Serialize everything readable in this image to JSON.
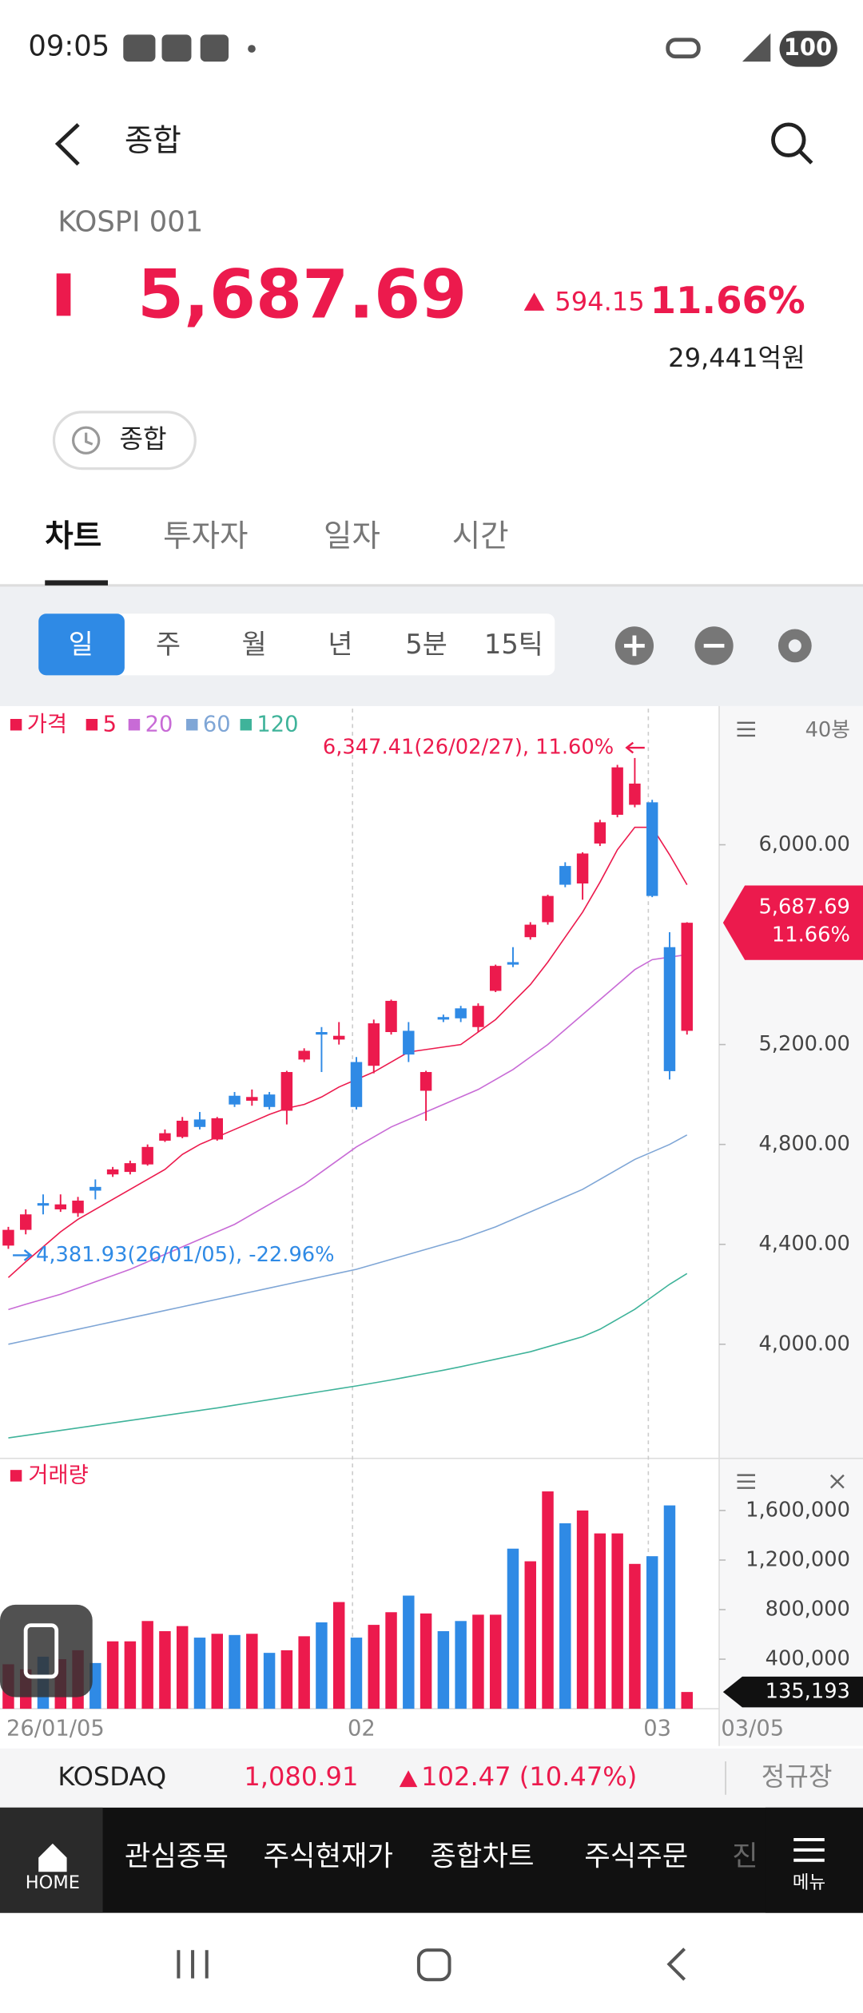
{
  "status_bar": {
    "time": "09:05",
    "battery": "100"
  },
  "header": {
    "title": "종합"
  },
  "quote": {
    "code": "KOSPI 001",
    "price": "5,687.69",
    "change": "594.15",
    "change_pct": "11.66%",
    "turnover": "29,441억원",
    "market_chip": "종합"
  },
  "tabs": [
    "차트",
    "투자자",
    "일자",
    "시간"
  ],
  "periods": [
    "일",
    "주",
    "월",
    "년",
    "5분",
    "15틱"
  ],
  "chart": {
    "type": "candlestick",
    "price_legend": "가격",
    "bars": "40봉",
    "up_color": "#ec1a4d",
    "down_color": "#2f8ae5",
    "categories": [
      "26/01/05",
      null,
      null,
      null,
      null,
      null,
      null,
      null,
      null,
      null,
      null,
      null,
      null,
      null,
      null,
      null,
      null,
      null,
      null,
      null,
      "02",
      null,
      null,
      null,
      null,
      null,
      null,
      null,
      null,
      null,
      null,
      null,
      null,
      null,
      null,
      null,
      null,
      "03",
      null,
      null
    ],
    "last_date": "03/05",
    "ylim": [
      3548,
      6545
    ],
    "yticks": [
      {
        "value": 4000,
        "label": "4,000.00"
      },
      {
        "value": 4400,
        "label": "4,400.00"
      },
      {
        "value": 4800,
        "label": "4,800.00"
      },
      {
        "value": 5200,
        "label": "5,200.00"
      },
      {
        "value": 6000,
        "label": "6,000.00"
      }
    ],
    "open": [
      4395,
      4458,
      4565,
      4540,
      4525,
      4630,
      4680,
      4690,
      4720,
      4815,
      4830,
      4900,
      4820,
      4995,
      4975,
      5000,
      4935,
      5140,
      5250,
      5220,
      5130,
      5115,
      5250,
      5255,
      5015,
      5310,
      5345,
      5270,
      5415,
      5530,
      5630,
      5690,
      5915,
      5845,
      6005,
      6120,
      6160,
      6170,
      5590,
      5255
    ],
    "high": [
      4470,
      4540,
      4600,
      4600,
      4590,
      4660,
      4710,
      4735,
      4800,
      4860,
      4910,
      4930,
      4910,
      5010,
      5020,
      5010,
      5095,
      5185,
      5270,
      5290,
      5150,
      5300,
      5380,
      5290,
      5095,
      5320,
      5355,
      5365,
      5520,
      5590,
      5690,
      5800,
      5930,
      5970,
      6100,
      6320,
      6347.41,
      6180,
      5650,
      5690
    ],
    "low": [
      4381.93,
      4440,
      4520,
      4530,
      4510,
      4580,
      4670,
      4680,
      4715,
      4810,
      4825,
      4860,
      4815,
      4950,
      4955,
      4940,
      4880,
      5130,
      5090,
      5200,
      4940,
      5085,
      5240,
      5130,
      4895,
      5290,
      5290,
      5250,
      5410,
      5510,
      5620,
      5680,
      5830,
      5780,
      5995,
      6110,
      6150,
      5790,
      5060,
      5240
    ],
    "close": [
      4458,
      4520,
      4555,
      4560,
      4575,
      4615,
      4700,
      4725,
      4790,
      4845,
      4895,
      4870,
      4905,
      4960,
      4990,
      4950,
      5090,
      5175,
      5240,
      5235,
      4950,
      5285,
      5375,
      5160,
      5090,
      5300,
      5305,
      5355,
      5515,
      5520,
      5680,
      5795,
      5840,
      5965,
      6090,
      6310,
      6245,
      5795,
      5093.54,
      5687.69
    ],
    "series": [
      {
        "name": "5",
        "color": "#ec1a4d",
        "values": [
          4267,
          4330,
          4390,
          4450,
          4500,
          4540,
          4580,
          4620,
          4660,
          4700,
          4760,
          4800,
          4830,
          4860,
          4890,
          4920,
          4945,
          4960,
          4990,
          5030,
          5060,
          5090,
          5130,
          5170,
          5180,
          5190,
          5200,
          5250,
          5300,
          5370,
          5440,
          5530,
          5630,
          5730,
          5850,
          5980,
          6070,
          6070,
          5960,
          5840
        ]
      },
      {
        "name": "20",
        "color": "#c86bd6",
        "values": [
          4139,
          4160,
          4180,
          4200,
          4225,
          4250,
          4275,
          4300,
          4330,
          4360,
          4390,
          4420,
          4450,
          4480,
          4520,
          4560,
          4600,
          4640,
          4690,
          4740,
          4790,
          4830,
          4870,
          4900,
          4930,
          4960,
          4990,
          5020,
          5060,
          5100,
          5150,
          5200,
          5260,
          5320,
          5380,
          5440,
          5500,
          5540,
          5550,
          5560
        ]
      },
      {
        "name": "60",
        "color": "#7fa6d6",
        "values": [
          4000,
          4015,
          4030,
          4045,
          4060,
          4075,
          4090,
          4105,
          4120,
          4135,
          4150,
          4165,
          4180,
          4195,
          4210,
          4225,
          4240,
          4255,
          4270,
          4285,
          4300,
          4320,
          4340,
          4360,
          4380,
          4400,
          4420,
          4445,
          4470,
          4500,
          4530,
          4560,
          4590,
          4620,
          4660,
          4700,
          4740,
          4770,
          4800,
          4838
        ]
      },
      {
        "name": "120",
        "color": "#3fb39a",
        "values": [
          3625,
          3635,
          3645,
          3655,
          3665,
          3675,
          3685,
          3695,
          3705,
          3715,
          3725,
          3735,
          3745,
          3756,
          3767,
          3778,
          3789,
          3800,
          3811,
          3822,
          3833,
          3845,
          3857,
          3870,
          3883,
          3896,
          3910,
          3925,
          3940,
          3955,
          3970,
          3990,
          4010,
          4030,
          4060,
          4100,
          4140,
          4190,
          4240,
          4283
        ]
      }
    ],
    "high_note": "6,347.41(26/02/27), 11.60%",
    "low_note": "4,381.93(26/01/05), -22.96%",
    "price_tag": {
      "price": "5,687.69",
      "pct": "11.66%"
    },
    "volume": {
      "title": "거래량",
      "ylim": [
        0,
        1979000
      ],
      "yticks": [
        {
          "value": 400000,
          "label": "400,000"
        },
        {
          "value": 800000,
          "label": "800,000"
        },
        {
          "value": 1200000,
          "label": "1,200,000"
        },
        {
          "value": 1600000,
          "label": "1,600,000"
        }
      ],
      "values": [
        359000,
        318000,
        420000,
        400000,
        472000,
        369000,
        544000,
        544000,
        708000,
        626000,
        667000,
        574000,
        605000,
        595000,
        605000,
        451000,
        472000,
        585000,
        697000,
        861000,
        574000,
        677000,
        779000,
        913000,
        769000,
        626000,
        708000,
        759000,
        759000,
        1292000,
        1190000,
        1754000,
        1497000,
        1600000,
        1415000,
        1415000,
        1169000,
        1231000,
        1641000,
        135193
      ],
      "last_label": "135,193"
    }
  },
  "kosdaq": {
    "name": "KOSDAQ",
    "price": "1,080.91",
    "change": "102.47 (10.47%)",
    "session": "정규장"
  },
  "nav": {
    "home": "HOME",
    "items": [
      "관심종목",
      "주식현재가",
      "종합차트",
      "주식주문",
      "진"
    ],
    "menu": "메뉴"
  }
}
